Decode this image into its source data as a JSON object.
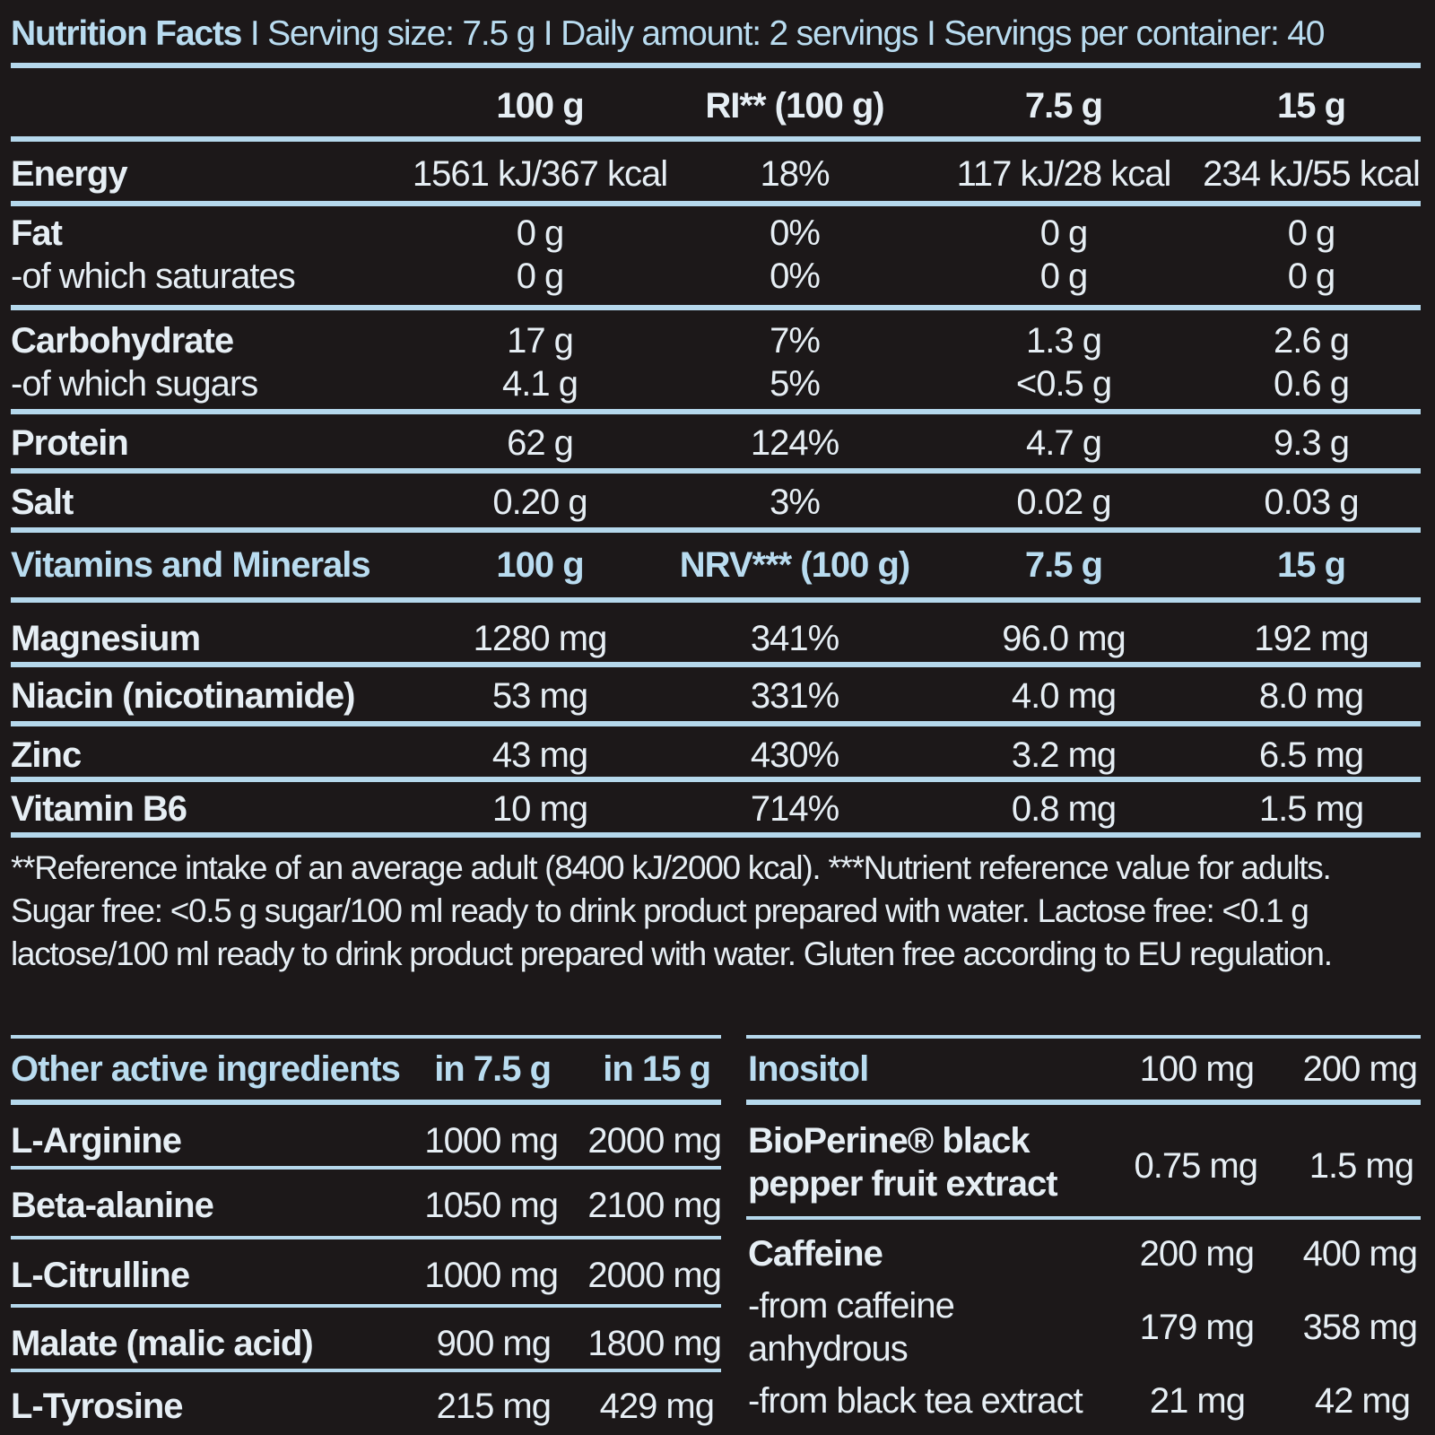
{
  "header": {
    "title": "Nutrition Facts",
    "separator": "I",
    "serving": "Serving size: 7.5 g",
    "daily": "Daily amount: 2 servings",
    "per_container": "Servings per container: 40"
  },
  "nutrition": {
    "columns": [
      "100 g",
      "RI** (100 g)",
      "7.5 g",
      "15 g"
    ],
    "rows": [
      {
        "label": "Energy",
        "v": [
          "1561 kJ/367 kcal",
          "18%",
          "117 kJ/28 kcal",
          "234 kJ/55 kcal"
        ]
      },
      {
        "label": "Fat",
        "v": [
          "0 g",
          "0%",
          "0 g",
          "0 g"
        ]
      },
      {
        "label": "-of which saturates",
        "v": [
          "0 g",
          "0%",
          "0 g",
          "0 g"
        ]
      },
      {
        "label": "Carbohydrate",
        "v": [
          "17 g",
          "7%",
          "1.3 g",
          "2.6 g"
        ]
      },
      {
        "label": "-of which sugars",
        "v": [
          "4.1 g",
          "5%",
          "<0.5 g",
          "0.6 g"
        ]
      },
      {
        "label": "Protein",
        "v": [
          "62 g",
          "124%",
          "4.7 g",
          "9.3 g"
        ]
      },
      {
        "label": "Salt",
        "v": [
          "0.20 g",
          "3%",
          "0.02 g",
          "0.03 g"
        ]
      }
    ]
  },
  "vitamins": {
    "title": "Vitamins and Minerals",
    "columns": [
      "100 g",
      "NRV*** (100 g)",
      "7.5 g",
      "15 g"
    ],
    "rows": [
      {
        "label": "Magnesium",
        "v": [
          "1280 mg",
          "341%",
          "96.0 mg",
          "192 mg"
        ]
      },
      {
        "label": "Niacin (nicotinamide)",
        "v": [
          "53 mg",
          "331%",
          "4.0 mg",
          "8.0 mg"
        ]
      },
      {
        "label": "Zinc",
        "v": [
          "43 mg",
          "430%",
          "3.2 mg",
          "6.5 mg"
        ]
      },
      {
        "label": "Vitamin B6",
        "v": [
          "10 mg",
          "714%",
          "0.8 mg",
          "1.5 mg"
        ]
      }
    ]
  },
  "footnote": "**Reference intake of an average adult (8400 kJ/2000 kcal). ***Nutrient reference value for adults. Sugar free: <0.5 g sugar/100 ml ready to drink product prepared with water. Lactose free: <0.1 g lactose/100 ml ready to drink product prepared with water. Gluten free according to EU regulation.",
  "active_left": {
    "title": "Other active ingredients",
    "columns": [
      "in 7.5 g",
      "in 15 g"
    ],
    "rows": [
      {
        "label": "L-Arginine",
        "v": [
          "1000 mg",
          "2000 mg"
        ]
      },
      {
        "label": "Beta-alanine",
        "v": [
          "1050 mg",
          "2100 mg"
        ]
      },
      {
        "label": "L-Citrulline",
        "v": [
          "1000 mg",
          "2000 mg"
        ]
      },
      {
        "label": "Malate (malic acid)",
        "v": [
          "900 mg",
          "1800 mg"
        ]
      },
      {
        "label": "L-Tyrosine",
        "v": [
          "215 mg",
          "429 mg"
        ]
      }
    ]
  },
  "active_right": {
    "inositol": {
      "label": "Inositol",
      "v": [
        "100 mg",
        "200 mg"
      ]
    },
    "bioperine": {
      "label_line1": "BioPerine® black",
      "label_line2": "pepper fruit extract",
      "v": [
        "0.75 mg",
        "1.5 mg"
      ]
    },
    "caffeine": {
      "label": "Caffeine",
      "v": [
        "200 mg",
        "400 mg"
      ]
    },
    "caffeine_anhydrous": {
      "label_line1": "-from caffeine",
      "label_line2": "anhydrous",
      "v": [
        "179 mg",
        "358 mg"
      ]
    },
    "black_tea": {
      "label": "-from black tea extract",
      "v": [
        "21 mg",
        "42 mg"
      ]
    }
  },
  "colors": {
    "background": "#1c1819",
    "rule": "#b5d8ec",
    "header_text": "#b9dcf0",
    "body_text": "#e6eef4"
  }
}
